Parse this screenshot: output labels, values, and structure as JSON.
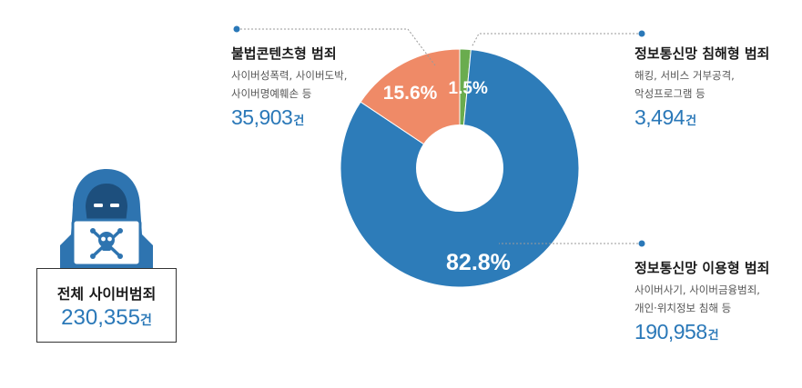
{
  "chart_data": {
    "type": "pie",
    "variant": "donut",
    "categories": [
      "정보통신망 이용형 범죄",
      "불법콘텐츠형 범죄",
      "정보통신망 침해형 범죄"
    ],
    "values": [
      82.8,
      15.6,
      1.5
    ],
    "value_labels": [
      "82.8%",
      "15.6%",
      "1.5%"
    ],
    "counts": [
      190958,
      35903,
      3494
    ],
    "colors": [
      "#2d7cb9",
      "#ef8a67",
      "#6aac4e"
    ]
  },
  "total": {
    "title": "전체 사이버범죄",
    "count": "230,355",
    "unit": "건"
  },
  "categories": {
    "illegal_content": {
      "title": "불법콘텐츠형 범죄",
      "desc": [
        "사이버성폭력, 사이버도박,",
        "사이버명예훼손 등"
      ],
      "count": "35,903",
      "unit": "건"
    },
    "network_intrusion": {
      "title": "정보통신망 침해형 범죄",
      "desc": [
        "해킹, 서비스 거부공격,",
        "악성프로그램 등"
      ],
      "count": "3,494",
      "unit": "건"
    },
    "network_use": {
      "title": "정보통신망 이용형 범죄",
      "desc": [
        "사이버사기, 사이버금융범죄,",
        "개인·위치정보 침해 등"
      ],
      "count": "190,958",
      "unit": "건"
    }
  },
  "colors": {
    "accent_blue": "#2a78b8",
    "hacker_icon": "#2e74b0"
  },
  "icons": {
    "hacker": "hooded-hacker-icon",
    "skull": "skull-crossbones-icon"
  }
}
